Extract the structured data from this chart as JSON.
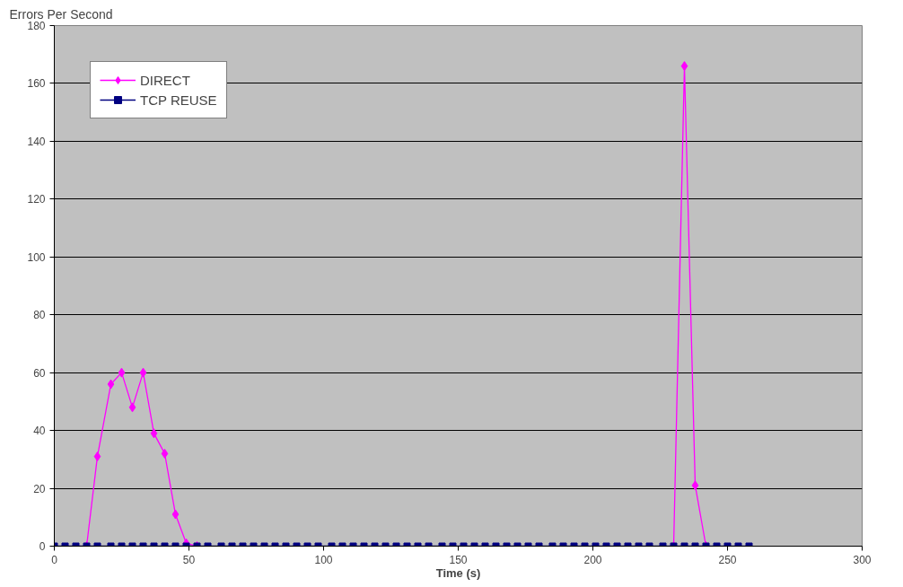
{
  "chart_data": {
    "type": "line",
    "xlabel": "Time (s)",
    "ylabel": "Errors Per Second",
    "x": [
      0,
      4,
      8,
      12,
      16,
      21,
      25,
      29,
      33,
      37,
      41,
      45,
      49,
      53,
      57,
      62,
      66,
      70,
      74,
      78,
      82,
      86,
      90,
      94,
      98,
      103,
      107,
      111,
      115,
      119,
      123,
      127,
      131,
      135,
      139,
      144,
      148,
      152,
      156,
      160,
      164,
      168,
      172,
      176,
      180,
      185,
      189,
      193,
      197,
      201,
      205,
      209,
      213,
      217,
      221,
      226,
      230,
      234,
      238,
      242,
      246,
      250,
      254,
      258
    ],
    "series": [
      {
        "name": "DIRECT",
        "color": "#ff00ff",
        "marker": "diamond",
        "values": [
          null,
          null,
          null,
          0,
          31,
          56,
          60,
          48,
          60,
          39,
          32,
          11,
          1,
          0,
          null,
          null,
          null,
          null,
          null,
          null,
          null,
          null,
          null,
          null,
          null,
          null,
          null,
          null,
          null,
          null,
          null,
          null,
          null,
          null,
          null,
          null,
          null,
          null,
          null,
          null,
          null,
          null,
          null,
          null,
          null,
          null,
          null,
          null,
          null,
          null,
          null,
          null,
          null,
          null,
          null,
          null,
          0,
          166,
          21,
          0,
          null,
          null,
          null,
          null
        ]
      },
      {
        "name": "TCP REUSE",
        "color": "#000080",
        "marker": "square",
        "values": [
          0,
          0,
          0,
          0,
          0,
          0,
          0,
          0,
          0,
          0,
          0,
          0,
          0,
          0,
          0,
          0,
          0,
          0,
          0,
          0,
          0,
          0,
          0,
          0,
          0,
          0,
          0,
          0,
          0,
          0,
          0,
          0,
          0,
          0,
          0,
          0,
          0,
          0,
          0,
          0,
          0,
          0,
          0,
          0,
          0,
          0,
          0,
          0,
          0,
          0,
          0,
          0,
          0,
          0,
          0,
          0,
          0,
          0,
          0,
          0,
          0,
          0,
          0,
          0
        ]
      }
    ],
    "xlim": [
      0,
      300
    ],
    "xticks": [
      0,
      50,
      100,
      150,
      200,
      250,
      300
    ],
    "ylim": [
      0,
      180
    ],
    "yticks": [
      0,
      20,
      40,
      60,
      80,
      100,
      120,
      140,
      160,
      180
    ],
    "grid": "y",
    "legend": "top left",
    "line_style": "solid"
  }
}
